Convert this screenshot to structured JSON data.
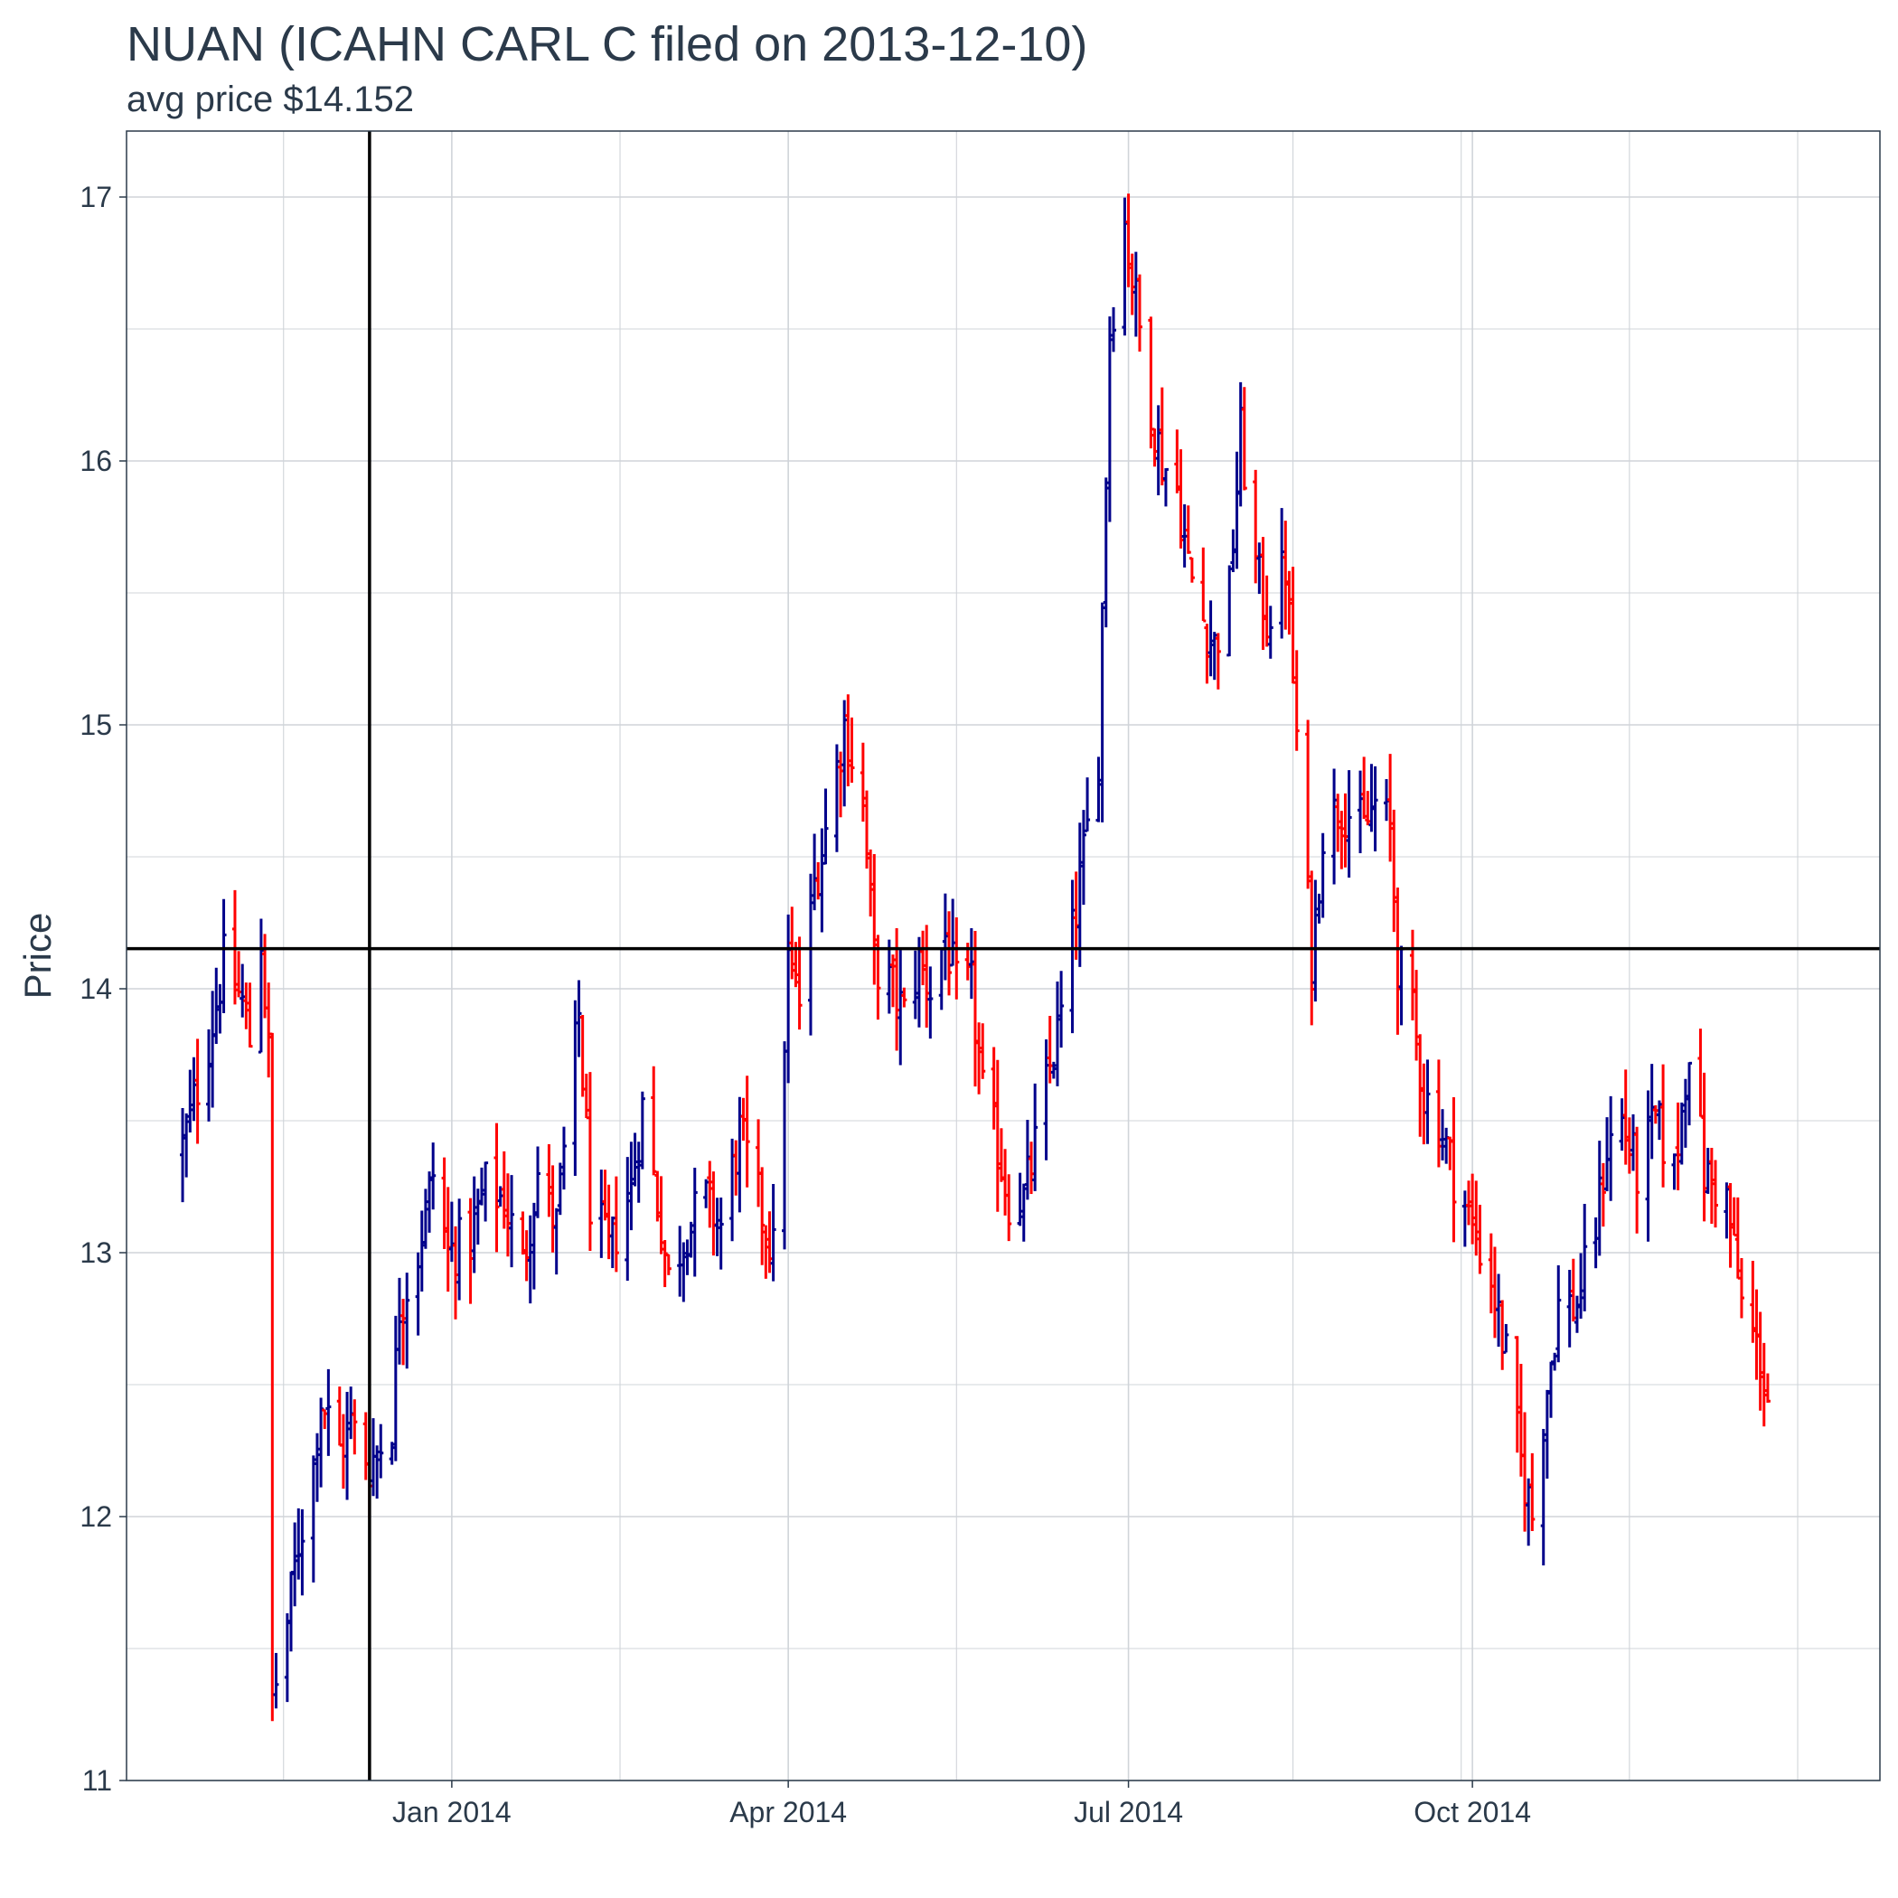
{
  "title": "NUAN (ICAHN CARL C filed on 2013-12-10)",
  "subtitle": "avg price $14.152",
  "colors": {
    "up": "#00008B",
    "down": "#FF0000",
    "reference": "#000000",
    "grid": "#d0d4d9",
    "text": "#2b3a4a"
  },
  "chart_data": {
    "type": "ohlc",
    "ylabel": "Price",
    "xlabel": "",
    "ylim": [
      11,
      17.25
    ],
    "yticks": [
      11,
      12,
      13,
      14,
      15,
      16,
      17
    ],
    "x_range": [
      "2013-10-06",
      "2015-01-18"
    ],
    "x_ticks": [
      {
        "date": "2014-01-01",
        "label": "Jan 2014"
      },
      {
        "date": "2014-04-01",
        "label": "Apr 2014"
      },
      {
        "date": "2014-07-01",
        "label": "Jul 2014"
      },
      {
        "date": "2014-10-01",
        "label": "Oct 2014"
      }
    ],
    "filing_date": "2013-12-10",
    "avg_price": 14.152,
    "grid": true,
    "legend": "none",
    "price_path": [
      [
        "2013-10-21",
        13.4
      ],
      [
        "2013-10-28",
        13.8
      ],
      [
        "2013-11-01",
        14.1
      ],
      [
        "2013-11-06",
        13.95
      ],
      [
        "2013-11-08",
        13.8
      ],
      [
        "2013-11-11",
        14.2
      ],
      [
        "2013-11-13",
        13.75
      ],
      [
        "2013-11-14",
        11.3
      ],
      [
        "2013-11-18",
        11.6
      ],
      [
        "2013-11-21",
        11.9
      ],
      [
        "2013-11-25",
        12.2
      ],
      [
        "2013-11-27",
        12.45
      ],
      [
        "2013-12-02",
        12.25
      ],
      [
        "2013-12-05",
        12.35
      ],
      [
        "2013-12-10",
        12.2
      ],
      [
        "2013-12-16",
        12.35
      ],
      [
        "2013-12-18",
        12.8
      ],
      [
        "2013-12-23",
        13.0
      ],
      [
        "2013-12-27",
        13.3
      ],
      [
        "2013-12-31",
        13.0
      ],
      [
        "2014-01-06",
        13.05
      ],
      [
        "2014-01-10",
        13.25
      ],
      [
        "2014-01-15",
        13.2
      ],
      [
        "2014-01-20",
        12.95
      ],
      [
        "2014-01-24",
        13.3
      ],
      [
        "2014-01-29",
        13.1
      ],
      [
        "2014-02-04",
        13.9
      ],
      [
        "2014-02-07",
        13.2
      ],
      [
        "2014-02-12",
        13.0
      ],
      [
        "2014-02-18",
        13.25
      ],
      [
        "2014-02-21",
        13.55
      ],
      [
        "2014-02-25",
        13.2
      ],
      [
        "2014-02-28",
        12.9
      ],
      [
        "2014-03-05",
        13.1
      ],
      [
        "2014-03-10",
        13.2
      ],
      [
        "2014-03-14",
        13.1
      ],
      [
        "2014-03-19",
        13.45
      ],
      [
        "2014-03-24",
        13.2
      ],
      [
        "2014-03-28",
        13.0
      ],
      [
        "2014-04-01",
        14.1
      ],
      [
        "2014-04-04",
        13.95
      ],
      [
        "2014-04-08",
        14.4
      ],
      [
        "2014-04-11",
        14.6
      ],
      [
        "2014-04-16",
        15.0
      ],
      [
        "2014-04-21",
        14.7
      ],
      [
        "2014-04-24",
        14.1
      ],
      [
        "2014-04-29",
        14.0
      ],
      [
        "2014-05-02",
        13.9
      ],
      [
        "2014-05-06",
        14.1
      ],
      [
        "2014-05-09",
        14.0
      ],
      [
        "2014-05-13",
        14.2
      ],
      [
        "2014-05-16",
        14.0
      ],
      [
        "2014-05-20",
        14.0
      ],
      [
        "2014-05-23",
        13.6
      ],
      [
        "2014-05-27",
        13.4
      ],
      [
        "2014-05-30",
        13.2
      ],
      [
        "2014-06-03",
        13.2
      ],
      [
        "2014-06-06",
        13.4
      ],
      [
        "2014-06-10",
        13.7
      ],
      [
        "2014-06-13",
        13.9
      ],
      [
        "2014-06-16",
        14.2
      ],
      [
        "2014-06-19",
        14.5
      ],
      [
        "2014-06-23",
        14.9
      ],
      [
        "2014-06-26",
        16.5
      ],
      [
        "2014-06-30",
        16.9
      ],
      [
        "2014-07-02",
        16.7
      ],
      [
        "2014-07-07",
        16.2
      ],
      [
        "2014-07-10",
        16.0
      ],
      [
        "2014-07-14",
        15.9
      ],
      [
        "2014-07-17",
        15.6
      ],
      [
        "2014-07-21",
        15.4
      ],
      [
        "2014-07-24",
        15.3
      ],
      [
        "2014-07-28",
        15.5
      ],
      [
        "2014-07-31",
        16.1
      ],
      [
        "2014-08-04",
        15.6
      ],
      [
        "2014-08-07",
        15.4
      ],
      [
        "2014-08-12",
        15.6
      ],
      [
        "2014-08-19",
        14.1
      ],
      [
        "2014-08-22",
        14.6
      ],
      [
        "2014-08-27",
        14.7
      ],
      [
        "2014-09-02",
        14.6
      ],
      [
        "2014-09-05",
        14.7
      ],
      [
        "2014-09-09",
        14.6
      ],
      [
        "2014-09-11",
        14.1
      ],
      [
        "2014-09-15",
        13.9
      ],
      [
        "2014-09-18",
        13.6
      ],
      [
        "2014-09-22",
        13.5
      ],
      [
        "2014-09-26",
        13.3
      ],
      [
        "2014-10-01",
        13.1
      ],
      [
        "2014-10-06",
        12.9
      ],
      [
        "2014-10-10",
        12.6
      ],
      [
        "2014-10-14",
        12.2
      ],
      [
        "2014-10-17",
        12.0
      ],
      [
        "2014-10-21",
        12.5
      ],
      [
        "2014-10-24",
        12.8
      ],
      [
        "2014-10-29",
        12.8
      ],
      [
        "2014-11-03",
        13.1
      ],
      [
        "2014-11-06",
        13.4
      ],
      [
        "2014-11-10",
        13.5
      ],
      [
        "2014-11-14",
        13.3
      ],
      [
        "2014-11-19",
        13.5
      ],
      [
        "2014-11-24",
        13.3
      ],
      [
        "2014-11-28",
        13.8
      ],
      [
        "2014-12-02",
        13.3
      ],
      [
        "2014-12-08",
        13.2
      ],
      [
        "2014-12-12",
        12.8
      ],
      [
        "2014-12-17",
        12.6
      ],
      [
        "2014-12-22",
        12.2
      ]
    ]
  }
}
